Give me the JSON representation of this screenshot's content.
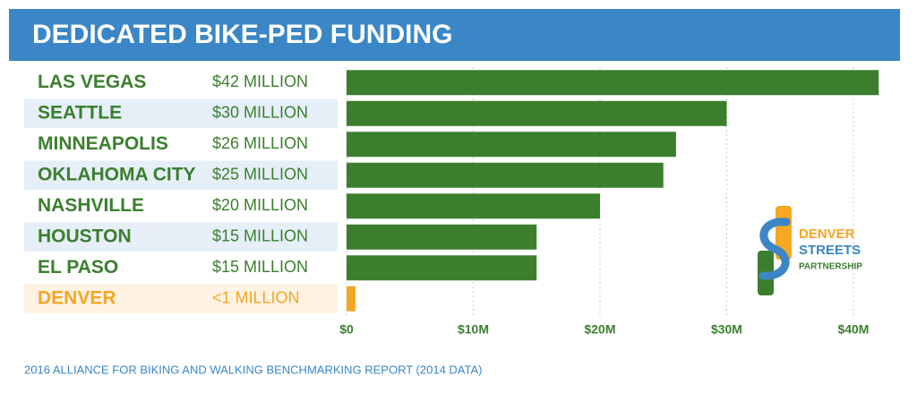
{
  "chart_data": {
    "type": "hbar",
    "title": "DEDICATED BIKE-PED FUNDING",
    "categories": [
      "LAS VEGAS",
      "SEATTLE",
      "MINNEAPOLIS",
      "OKLAHOMA CITY",
      "NASHVILLE",
      "HOUSTON",
      "EL PASO",
      "DENVER"
    ],
    "values": [
      42,
      30,
      26,
      25,
      20,
      15,
      15,
      0.7
    ],
    "value_labels": [
      "$42 MILLION",
      "$30 MILLION",
      "$26 MILLION",
      "$25 MILLION",
      "$20 MILLION",
      "$15 MILLION",
      "$15 MILLION",
      "<1 MILLION"
    ],
    "colors": [
      "#3b7f2e",
      "#3b7f2e",
      "#3b7f2e",
      "#3b7f2e",
      "#3b7f2e",
      "#3b7f2e",
      "#3b7f2e",
      "#f5a623"
    ],
    "xlim": [
      0,
      43.5
    ],
    "xticks": [
      {
        "value": 0,
        "label": "$0"
      },
      {
        "value": 10,
        "label": "$10M"
      },
      {
        "value": 20,
        "label": "$20M"
      },
      {
        "value": 30,
        "label": "$30M"
      },
      {
        "value": 40,
        "label": "$40M"
      }
    ],
    "grid": true,
    "logo": [
      "DENVER",
      "STREETS",
      "PARTNERSHIP"
    ],
    "source": "2016 ALLIANCE FOR BIKING AND WALKING BENCHMARKING REPORT (2014 DATA)"
  }
}
